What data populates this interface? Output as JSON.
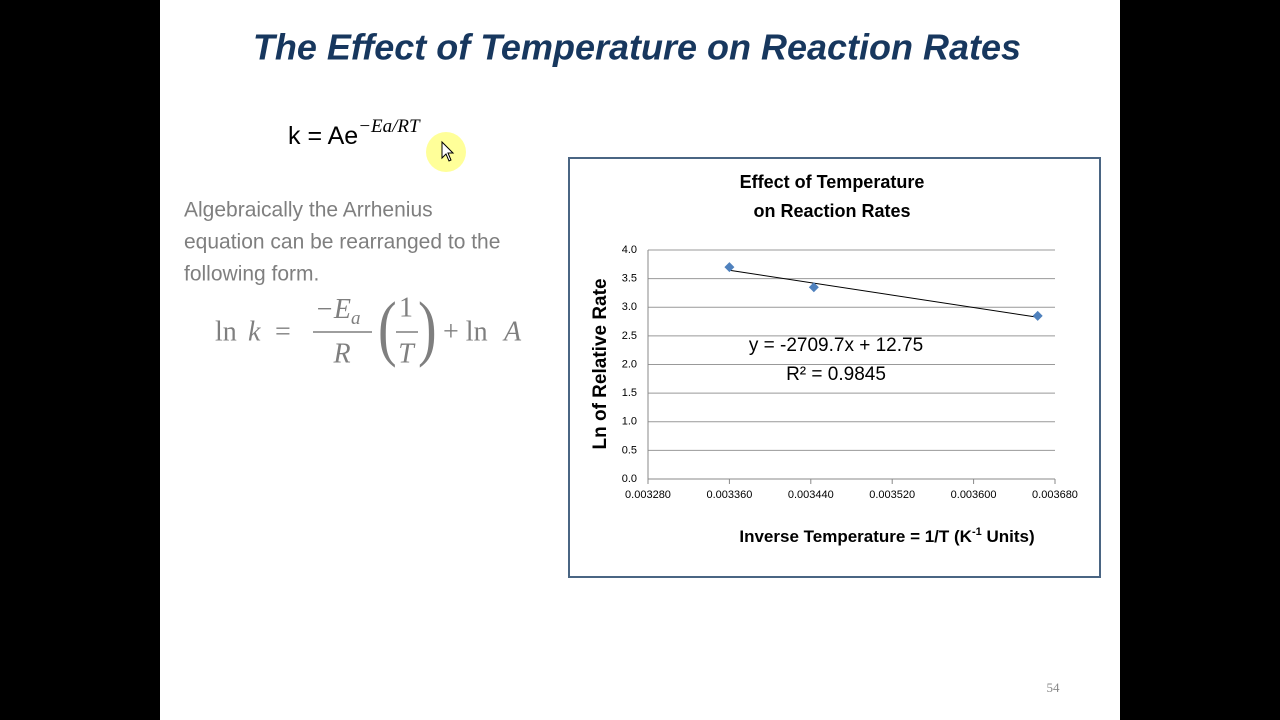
{
  "slide": {
    "title": "The Effect of Temperature on Reaction Rates",
    "formula": "k = Ae",
    "formula_exponent": "−Ea/RT",
    "paragraph": [
      "Algebraically the Arrhenius",
      "equation can be rearranged to the",
      "following form."
    ],
    "equation": {
      "lhs_fn": "ln",
      "lhs_var": "k",
      "eq": "=",
      "num": "−E",
      "num_sub": "a",
      "den": "R",
      "inner_num": "1",
      "inner_den": "T",
      "rhs": "+ ln",
      "rhs_var": "A"
    },
    "page_number": "54"
  },
  "chart_data": {
    "type": "scatter",
    "title": [
      "Effect of Temperature",
      "on Reaction Rates"
    ],
    "x_label": [
      "Inverse Temperature = 1/T (K",
      "-1",
      " Units)"
    ],
    "y_label": "Ln of Relative Rate",
    "x": [
      0.00336,
      0.003443,
      0.003663
    ],
    "values": [
      3.7,
      3.35,
      2.85
    ],
    "color": "#4f81bd",
    "xlim": [
      0.00328,
      0.00368
    ],
    "xticks": [
      {
        "value": 0.00328,
        "label": "0.003280"
      },
      {
        "value": 0.00336,
        "label": "0.003360"
      },
      {
        "value": 0.00344,
        "label": "0.003440"
      },
      {
        "value": 0.00352,
        "label": "0.003520"
      },
      {
        "value": 0.0036,
        "label": "0.003600"
      },
      {
        "value": 0.00368,
        "label": "0.003680"
      }
    ],
    "ylim": [
      0,
      4
    ],
    "yticks": [
      {
        "value": 0,
        "label": "0.0"
      },
      {
        "value": 0.5,
        "label": "0.5"
      },
      {
        "value": 1,
        "label": "1.0"
      },
      {
        "value": 1.5,
        "label": "1.5"
      },
      {
        "value": 2,
        "label": "2.0"
      },
      {
        "value": 2.5,
        "label": "2.5"
      },
      {
        "value": 3,
        "label": "3.0"
      },
      {
        "value": 3.5,
        "label": "3.5"
      },
      {
        "value": 4,
        "label": "4.0"
      }
    ],
    "grid": true,
    "trendline": {
      "slope": -2709.7,
      "intercept": 12.75,
      "label": "y = -2709.7x + 12.75",
      "r2_label": "R² = 0.9845"
    }
  }
}
